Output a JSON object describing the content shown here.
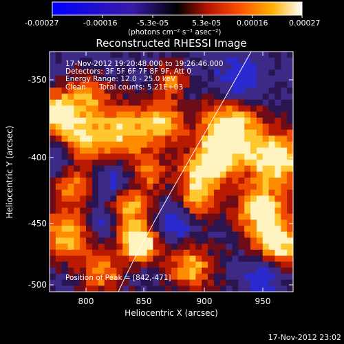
{
  "colorbar": {
    "ticks": [
      "-0.00027",
      "-0.00016",
      "-5.3e-05",
      "5.3e-05",
      "0.00016",
      "0.00027"
    ],
    "unit_label": "(photons cm⁻² s⁻¹ asec⁻²)",
    "colormap": [
      "#0000ff",
      "#3a1aa8",
      "#000000",
      "#b21400",
      "#ff5000",
      "#ffb000",
      "#ffffff"
    ]
  },
  "plot": {
    "title": "Reconstructed RHESSI Image",
    "xlabel": "Heliocentric X (arcsec)",
    "ylabel": "Heliocentric Y (arcsec)",
    "x_ticks": [
      "800",
      "850",
      "900",
      "950"
    ],
    "y_ticks": [
      "-350",
      "-400",
      "-450",
      "-500"
    ],
    "xlim": [
      775,
      970
    ],
    "ylim": [
      -505,
      -327
    ]
  },
  "overlay": {
    "time_range": "17-Nov-2012 19:20:48.000 to 19:26:46.000",
    "detectors": "Detectors: 3F 5F 6F 7F 8F 9F, Att 0",
    "energy": "Energy Range: 12.0 - 25.0 keV",
    "method": "Clean",
    "total_counts": "Total counts: 5.21E+03",
    "peak": "Position of Peak = [842,-471]"
  },
  "footer": {
    "timestamp": "17-Nov-2012 23:02"
  }
}
